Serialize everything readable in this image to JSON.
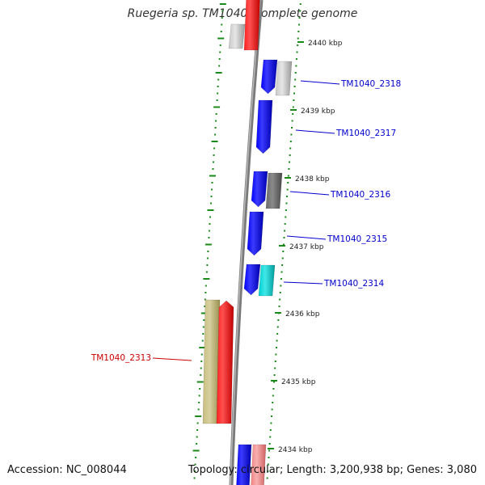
{
  "title": "Ruegeria sp. TM1040, complete genome",
  "footer": {
    "accession": "Accession: NC_008044",
    "topology": "Topology: circular; Length: 3,200,938 bp; Genes: 3,080"
  },
  "ticks": [
    "2440 kbp",
    "2439 kbp",
    "2438 kbp",
    "2437 kbp",
    "2436 kbp",
    "2435 kbp",
    "2434 kbp"
  ],
  "gene_labels": [
    {
      "text": "TM1040_2318",
      "color": "#0000cc"
    },
    {
      "text": "TM1040_2317",
      "color": "#0000cc"
    },
    {
      "text": "TM1040_2316",
      "color": "#0000cc"
    },
    {
      "text": "TM1040_2315",
      "color": "#0000cc"
    },
    {
      "text": "TM1040_2314",
      "color": "#0000cc"
    },
    {
      "text": "TM1040_2313",
      "color": "#cc0000"
    }
  ],
  "colors": {
    "backbone": "#808080",
    "tick_marks": "#1a8a1a",
    "gene_blue": "#0000ee",
    "gene_red": "#ee0000",
    "gene_gray": "#b0b0b0",
    "gene_darkgray": "#606060",
    "gene_cyan": "#00c8c8",
    "gene_khaki": "#b8ae6a",
    "gene_pink": "#f08080"
  }
}
